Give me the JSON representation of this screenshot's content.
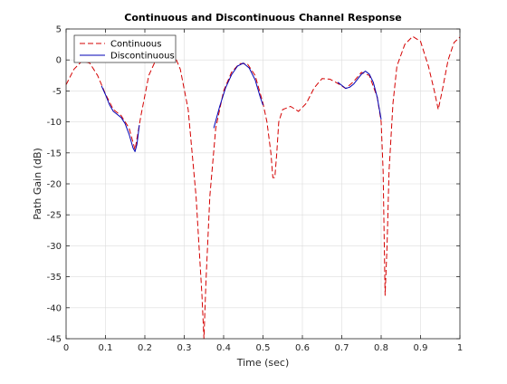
{
  "chart_data": {
    "type": "line",
    "title": "Continuous and Discontinuous Channel Response",
    "xlabel": "Time (sec)",
    "ylabel": "Path Gain (dB)",
    "xlim": [
      0,
      1
    ],
    "ylim": [
      -45,
      5
    ],
    "xticks": [
      0,
      0.1,
      0.2,
      0.3,
      0.4,
      0.5,
      0.6,
      0.7,
      0.8,
      0.9,
      1
    ],
    "xtick_labels": [
      "0",
      "0.1",
      "0.2",
      "0.3",
      "0.4",
      "0.5",
      "0.6",
      "0.7",
      "0.8",
      "0.9",
      "1"
    ],
    "yticks": [
      5,
      0,
      -5,
      -10,
      -15,
      -20,
      -25,
      -30,
      -35,
      -40,
      -45
    ],
    "ytick_labels": [
      "5",
      "0",
      "-5",
      "-10",
      "-15",
      "-20",
      "-25",
      "-30",
      "-35",
      "-40",
      "-45"
    ],
    "grid": true,
    "legend_position": "top-left",
    "series": [
      {
        "name": "Continuous",
        "color": "#d40000",
        "style": "dashed",
        "x": [
          0,
          0.02,
          0.04,
          0.06,
          0.08,
          0.1,
          0.12,
          0.14,
          0.16,
          0.175,
          0.19,
          0.21,
          0.23,
          0.25,
          0.27,
          0.29,
          0.31,
          0.33,
          0.345,
          0.35,
          0.355,
          0.365,
          0.38,
          0.4,
          0.42,
          0.44,
          0.46,
          0.48,
          0.5,
          0.51,
          0.52,
          0.525,
          0.53,
          0.535,
          0.54,
          0.55,
          0.57,
          0.59,
          0.61,
          0.63,
          0.65,
          0.67,
          0.69,
          0.71,
          0.73,
          0.75,
          0.77,
          0.79,
          0.8,
          0.805,
          0.81,
          0.815,
          0.82,
          0.83,
          0.84,
          0.86,
          0.88,
          0.9,
          0.92,
          0.935,
          0.945,
          0.955,
          0.97,
          0.985,
          1.0
        ],
        "y": [
          -4,
          -1.5,
          -0.2,
          -0.5,
          -2.5,
          -5.5,
          -8,
          -9,
          -11,
          -14.5,
          -9,
          -2.5,
          0.3,
          1.8,
          1.5,
          -1.5,
          -8,
          -22,
          -38,
          -45,
          -36,
          -22,
          -11,
          -5,
          -2,
          -0.6,
          -0.6,
          -2.5,
          -7,
          -10,
          -15,
          -19,
          -19,
          -15,
          -10,
          -8,
          -7.5,
          -8.3,
          -7,
          -4.5,
          -3,
          -3.1,
          -3.8,
          -4.6,
          -3.5,
          -2,
          -2.5,
          -6,
          -10,
          -18,
          -38,
          -30,
          -18,
          -7,
          -1,
          2.5,
          3.8,
          3,
          -1,
          -5,
          -8,
          -5,
          0,
          2.8,
          3.7
        ]
      },
      {
        "name": "Discontinuous",
        "color": "#0000b4",
        "style": "solid",
        "segments": [
          {
            "x": [
              0.09,
              0.1,
              0.11,
              0.12,
              0.13,
              0.14,
              0.15,
              0.16,
              0.17,
              0.175,
              0.18,
              0.186
            ],
            "y": [
              -4.2,
              -5.6,
              -7.2,
              -8.3,
              -8.8,
              -9.3,
              -10.3,
              -12,
              -14.2,
              -14.8,
              -13.6,
              -10.5
            ]
          },
          {
            "x": [
              0.375,
              0.39,
              0.405,
              0.42,
              0.435,
              0.45,
              0.465,
              0.48,
              0.493,
              0.5
            ],
            "y": [
              -11,
              -7.5,
              -4.5,
              -2.4,
              -1,
              -0.5,
              -1.3,
              -3.2,
              -6,
              -7.3
            ]
          },
          {
            "x": [
              0.69,
              0.7,
              0.71,
              0.72,
              0.73,
              0.74,
              0.75,
              0.76,
              0.77,
              0.78,
              0.79,
              0.8
            ],
            "y": [
              -3.6,
              -4.1,
              -4.6,
              -4.4,
              -3.9,
              -3.1,
              -2.3,
              -1.8,
              -2.3,
              -3.6,
              -6,
              -9.6
            ]
          }
        ]
      }
    ]
  }
}
